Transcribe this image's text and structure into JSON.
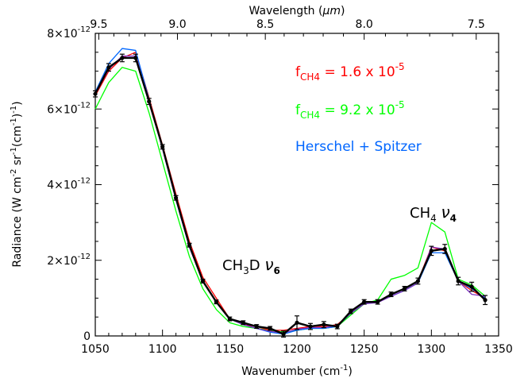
{
  "chart_data": {
    "type": "line",
    "xlabel": "Wavenumber (cm",
    "xlabel_sup": "-1",
    "xlabel_tail": ")",
    "top_xlabel": "Wavelength (",
    "top_xlabel_mu": "μm",
    "top_xlabel_tail": ")",
    "ylabel_parts": [
      "Radiance (W cm",
      "-2",
      " sr",
      "-1",
      "(cm",
      "-1",
      ")",
      "-1",
      ")"
    ],
    "xlim": [
      1050,
      1350
    ],
    "ylim": [
      0,
      8e-12
    ],
    "x_ticks": [
      1050,
      1100,
      1150,
      1200,
      1250,
      1300,
      1350
    ],
    "x_tick_labels": [
      "1050",
      "1100",
      "1150",
      "1200",
      "1250",
      "1300",
      "1350"
    ],
    "y_ticks": [
      0,
      2e-12,
      4e-12,
      6e-12,
      8e-12
    ],
    "y_tick_labels": [
      {
        "mant": "0",
        "exp": ""
      },
      {
        "mant": "2×10",
        "exp": "-12"
      },
      {
        "mant": "4×10",
        "exp": "-12"
      },
      {
        "mant": "6×10",
        "exp": "-12"
      },
      {
        "mant": "8×10",
        "exp": "-12"
      }
    ],
    "top_ticks_um": [
      9.5,
      9.0,
      8.5,
      8.0,
      7.5
    ],
    "top_tick_labels": [
      "9.5",
      "9.0",
      "8.5",
      "8.0",
      "7.5"
    ],
    "grid": false,
    "legend_position": "top-right",
    "legend": [
      {
        "base": "f",
        "sub": "CH4",
        "rest": " = 1.6 x 10",
        "sup": "-5",
        "color": "#ff0000"
      },
      {
        "base": "f",
        "sub": "CH4",
        "rest": " = 9.2 x 10",
        "sup": "-5",
        "color": "#00ff00"
      },
      {
        "base": "Herschel + Spitzer",
        "sub": "",
        "rest": "",
        "sup": "",
        "color": "#0066ff"
      }
    ],
    "annotations": [
      {
        "id": "ch3d",
        "base": "CH",
        "sub1": "3",
        "mid": "D ",
        "greek": "ν",
        "sub2": "6",
        "x": 1205,
        "y": 1.8e-12
      },
      {
        "id": "ch4",
        "base": "CH",
        "sub1": "4",
        "mid": " ",
        "greek": "ν",
        "sub2": "4",
        "x": 1300,
        "y": 3.1e-12
      }
    ],
    "series": [
      {
        "kind": "observed",
        "color": "#000000",
        "x": [
          1050,
          1060,
          1070,
          1080,
          1090,
          1100,
          1110,
          1120,
          1130,
          1140,
          1150,
          1160,
          1170,
          1180,
          1190,
          1200,
          1210,
          1220,
          1230,
          1240,
          1250,
          1260,
          1270,
          1280,
          1290,
          1300,
          1310,
          1320,
          1330,
          1340
        ],
        "y": [
          6.4e-12,
          7.1e-12,
          7.35e-12,
          7.35e-12,
          6.2e-12,
          5e-12,
          3.65e-12,
          2.4e-12,
          1.45e-12,
          9e-13,
          4.5e-13,
          3.5e-13,
          2.5e-13,
          2e-13,
          5e-14,
          3.5e-13,
          2.5e-13,
          3e-13,
          2.5e-13,
          6.5e-13,
          9e-13,
          9e-13,
          1.1e-12,
          1.25e-12,
          1.45e-12,
          2.25e-12,
          2.3e-12,
          1.45e-12,
          1.3e-12,
          9.5e-13
        ],
        "err": [
          8e-14,
          1e-13,
          1e-13,
          1e-13,
          8e-14,
          6e-14,
          6e-14,
          5e-14,
          5e-14,
          5e-14,
          5e-14,
          5e-14,
          5e-14,
          5e-14,
          8e-14,
          1.8e-13,
          8e-14,
          8e-14,
          6e-14,
          6e-14,
          6e-14,
          6e-14,
          6e-14,
          6e-14,
          8e-14,
          1.2e-13,
          1.2e-13,
          1e-13,
          1.2e-13,
          1.2e-13
        ]
      },
      {
        "name": "f_CH4 = 1.6 x 10^-5",
        "color": "#ff0000",
        "x": [
          1050,
          1060,
          1070,
          1080,
          1090,
          1100,
          1110,
          1120,
          1130,
          1140,
          1150,
          1160,
          1170,
          1180,
          1190,
          1200,
          1210,
          1220,
          1230,
          1240,
          1250,
          1260,
          1270,
          1280,
          1290,
          1300,
          1310,
          1320,
          1330,
          1340
        ],
        "y": [
          6.35e-12,
          7e-12,
          7.35e-12,
          7.5e-12,
          6.3e-12,
          5.05e-12,
          3.75e-12,
          2.5e-12,
          1.55e-12,
          1e-12,
          4.5e-13,
          3e-13,
          2.5e-13,
          1.5e-13,
          1.5e-13,
          2e-13,
          2.5e-13,
          2.5e-13,
          3e-13,
          6e-13,
          8.5e-13,
          9e-13,
          1.1e-12,
          1.25e-12,
          1.45e-12,
          2.35e-12,
          2.25e-12,
          1.45e-12,
          1.2e-12,
          1e-12
        ]
      },
      {
        "name": "f_CH4 = 9.2 x 10^-5",
        "color": "#00ff00",
        "x": [
          1050,
          1060,
          1070,
          1080,
          1090,
          1100,
          1110,
          1120,
          1130,
          1140,
          1150,
          1160,
          1170,
          1180,
          1190,
          1200,
          1210,
          1220,
          1230,
          1240,
          1250,
          1260,
          1270,
          1280,
          1290,
          1300,
          1310,
          1320,
          1330,
          1340
        ],
        "y": [
          6e-12,
          6.7e-12,
          7.1e-12,
          7e-12,
          5.9e-12,
          4.6e-12,
          3.3e-12,
          2.1e-12,
          1.25e-12,
          7e-13,
          3.5e-13,
          2.5e-13,
          2e-13,
          1.5e-13,
          1e-13,
          1.5e-13,
          2e-13,
          2e-13,
          2.5e-13,
          5.5e-13,
          8.5e-13,
          9.5e-13,
          1.5e-12,
          1.6e-12,
          1.8e-12,
          3e-12,
          2.75e-12,
          1.5e-12,
          1.35e-12,
          1.05e-12
        ]
      },
      {
        "name": "Herschel + Spitzer",
        "color": "#0066ff",
        "x": [
          1050,
          1060,
          1070,
          1080,
          1090,
          1100,
          1110,
          1120,
          1130,
          1140,
          1150,
          1160,
          1170,
          1180,
          1190,
          1200,
          1210,
          1220,
          1230,
          1240,
          1250,
          1260,
          1270,
          1280,
          1290,
          1300,
          1310,
          1320,
          1330,
          1340
        ],
        "y": [
          6.45e-12,
          7.2e-12,
          7.6e-12,
          7.55e-12,
          6.25e-12,
          4.95e-12,
          3.6e-12,
          2.35e-12,
          1.45e-12,
          9e-13,
          4.5e-13,
          3e-13,
          2e-13,
          1e-13,
          5e-14,
          1.5e-13,
          2e-13,
          2e-13,
          2.5e-13,
          6e-13,
          8.5e-13,
          9e-13,
          1.05e-12,
          1.2e-12,
          1.4e-12,
          2.2e-12,
          2.2e-12,
          1.45e-12,
          1.25e-12,
          1e-12
        ]
      },
      {
        "kind": "model",
        "color": "#7b2fbf",
        "x": [
          1050,
          1060,
          1070,
          1080,
          1090,
          1100,
          1110,
          1120,
          1130,
          1140,
          1150,
          1160,
          1170,
          1180,
          1190,
          1200,
          1210,
          1220,
          1230,
          1240,
          1250,
          1260,
          1270,
          1280,
          1290,
          1300,
          1310,
          1320,
          1330,
          1340
        ],
        "y": [
          6.4e-12,
          7.05e-12,
          7.4e-12,
          7.4e-12,
          6.2e-12,
          4.95e-12,
          3.6e-12,
          2.35e-12,
          1.45e-12,
          9e-13,
          4.5e-13,
          3e-13,
          2e-13,
          1.2e-13,
          8e-14,
          1.8e-13,
          2.2e-13,
          2.2e-13,
          2.7e-13,
          6e-13,
          8.5e-13,
          8.8e-13,
          1.05e-12,
          1.2e-12,
          1.4e-12,
          2.35e-12,
          2.3e-12,
          1.45e-12,
          1.1e-12,
          1.05e-12
        ]
      }
    ]
  }
}
